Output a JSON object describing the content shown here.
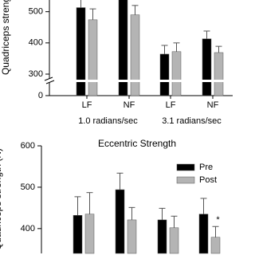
{
  "chart_data": [
    {
      "type": "bar",
      "y_label": "Quadriceps strength",
      "categories": [
        "LF",
        "NF",
        "LF",
        "NF"
      ],
      "groups": [
        "1.0 radians/sec",
        "3.1 radians/sec"
      ],
      "series": [
        {
          "name": "Pre",
          "color": "#000000",
          "values": [
            513,
            540,
            364,
            413
          ],
          "errors": [
            35,
            30,
            28,
            25
          ]
        },
        {
          "name": "Post",
          "color": "#b4b4b4",
          "values": [
            474,
            490,
            372,
            369
          ],
          "errors": [
            35,
            30,
            28,
            20
          ]
        }
      ],
      "ylim": [
        0,
        540
      ],
      "yticks": [
        0,
        300,
        400,
        500
      ],
      "axis_break": true
    },
    {
      "type": "bar",
      "title": "Eccentric Strength",
      "y_label": "Quadriceps strength (N)",
      "categories": [
        null,
        null,
        null,
        null
      ],
      "series": [
        {
          "name": "Pre",
          "color": "#000000",
          "values": [
            432,
            494,
            421,
            435
          ],
          "errors": [
            45,
            40,
            28,
            38
          ]
        },
        {
          "name": "Post",
          "color": "#b4b4b4",
          "values": [
            435,
            421,
            402,
            379
          ],
          "errors": [
            52,
            30,
            28,
            26
          ]
        }
      ],
      "annotation": "*",
      "ylim": [
        340,
        600
      ],
      "yticks": [
        400,
        500,
        600
      ],
      "legend": "top-right"
    }
  ]
}
